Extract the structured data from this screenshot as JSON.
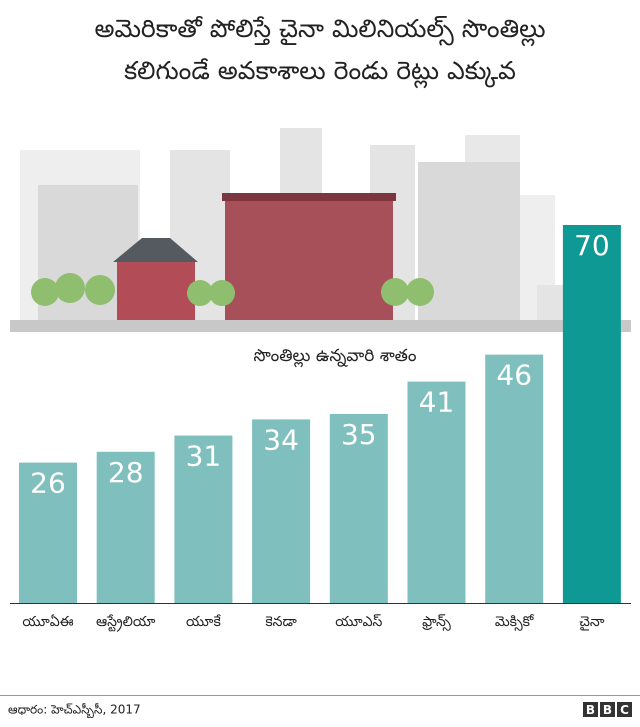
{
  "chart_data": {
    "type": "bar",
    "title": [
      "అమెరికాతో పోలిస్తే చైనా మిలినియల్స్ సొంతిల్లు",
      "కలిగుండే అవకాశాలు రెండు రెట్లు ఎక్కువ"
    ],
    "subtitle": "సొంతిల్లు ఉన్నవారి శాతం",
    "categories": [
      "యూఏఈ",
      "ఆస్ట్రేలియా",
      "యూకే",
      "కెనడా",
      "యూఎస్",
      "ఫ్రాన్స్",
      "మెక్సికో",
      "చైనా"
    ],
    "values": [
      26,
      28,
      31,
      34,
      35,
      41,
      46,
      70
    ],
    "colors": [
      "#7fbfbd",
      "#7fbfbd",
      "#7fbfbd",
      "#7fbfbd",
      "#7fbfbd",
      "#7fbfbd",
      "#7fbfbd",
      "#0f9994"
    ],
    "source": "ఆధారం: హెచ్ఎస్బీసీ, 2017",
    "logo": "BBC"
  }
}
